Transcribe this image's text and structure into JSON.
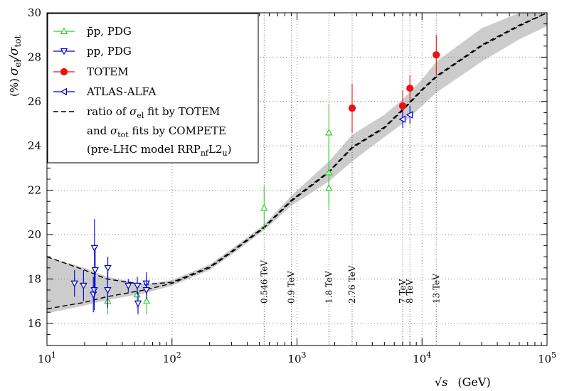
{
  "chart_data": {
    "type": "scatter",
    "xscale": "log",
    "xlim": [
      10,
      100000
    ],
    "ylim": [
      15,
      30
    ],
    "grid": true,
    "legend_position": "top-left",
    "ylabel": {
      "main": "σ",
      "sub1": "el",
      "slash": "/σ",
      "sub2": "tot",
      "unit": "(%)"
    },
    "xlabel": {
      "main": "√s",
      "unit": "(GeV)"
    },
    "xticks": [
      {
        "value": 10,
        "base": "10",
        "exp": "1"
      },
      {
        "value": 100,
        "base": "10",
        "exp": "2"
      },
      {
        "value": 1000,
        "base": "10",
        "exp": "3"
      },
      {
        "value": 10000,
        "base": "10",
        "exp": "4"
      },
      {
        "value": 100000,
        "base": "10",
        "exp": "5"
      }
    ],
    "yticks": [
      16,
      18,
      20,
      22,
      24,
      26,
      28,
      30
    ],
    "energy_markers": [
      {
        "x": 546,
        "label": "0.546 TeV"
      },
      {
        "x": 900,
        "label": "0.9 TeV"
      },
      {
        "x": 1800,
        "label": "1.8 TeV"
      },
      {
        "x": 2760,
        "label": "2.76 TeV"
      },
      {
        "x": 7000,
        "label": "7 TeV"
      },
      {
        "x": 8000,
        "label": "8 TeV"
      },
      {
        "x": 13000,
        "label": "13 TeV"
      }
    ],
    "series": [
      {
        "name": "p̄p, PDG",
        "color": "#33cc33",
        "marker": "triangle-up",
        "points": [
          {
            "x": 30.6,
            "y": 17.0,
            "err": 0.6
          },
          {
            "x": 52.6,
            "y": 17.3,
            "err": 0.6
          },
          {
            "x": 62.7,
            "y": 17.0,
            "err": 0.6
          },
          {
            "x": 546,
            "y": 21.2,
            "err": 1.0
          },
          {
            "x": 1800,
            "y": 22.8,
            "err": 1.5
          },
          {
            "x": 1800,
            "y": 24.6,
            "err": 1.3
          },
          {
            "x": 1800,
            "y": 22.1,
            "err": 1.0
          }
        ]
      },
      {
        "name": "pp, PDG",
        "color": "#0000cc",
        "marker": "triangle-down",
        "points": [
          {
            "x": 16.6,
            "y": 17.8,
            "err": 0.6
          },
          {
            "x": 19.6,
            "y": 17.7,
            "err": 0.7
          },
          {
            "x": 23.5,
            "y": 17.3,
            "err": 0.8
          },
          {
            "x": 23.9,
            "y": 17.5,
            "err": 0.9
          },
          {
            "x": 24.0,
            "y": 19.4,
            "err": 1.3
          },
          {
            "x": 24.3,
            "y": 18.4,
            "err": 1.0
          },
          {
            "x": 30.6,
            "y": 17.5,
            "err": 0.8
          },
          {
            "x": 30.7,
            "y": 18.5,
            "err": 0.5
          },
          {
            "x": 44.7,
            "y": 17.7,
            "err": 0.3
          },
          {
            "x": 52.8,
            "y": 17.7,
            "err": 0.4
          },
          {
            "x": 53.5,
            "y": 16.9,
            "err": 0.5
          },
          {
            "x": 62.3,
            "y": 17.8,
            "err": 0.5
          },
          {
            "x": 62.5,
            "y": 17.5,
            "err": 0.4
          }
        ]
      },
      {
        "name": "TOTEM",
        "color": "#ee1111",
        "marker": "circle",
        "points": [
          {
            "x": 2760,
            "y": 25.7,
            "err": 1.1
          },
          {
            "x": 7000,
            "y": 25.8,
            "err": 0.7
          },
          {
            "x": 8000,
            "y": 26.6,
            "err": 0.6
          },
          {
            "x": 13000,
            "y": 28.1,
            "err": 0.9
          }
        ]
      },
      {
        "name": "ATLAS-ALFA",
        "color": "#0000cc",
        "marker": "triangle-left",
        "points": [
          {
            "x": 7000,
            "y": 25.2,
            "err": 0.4
          },
          {
            "x": 8000,
            "y": 25.4,
            "err": 0.4
          }
        ]
      }
    ],
    "fit": {
      "legend_lines": [
        [
          "ratio of ",
          "σ",
          "el",
          " fit by TOTEM"
        ],
        [
          "and ",
          "σ",
          "tot",
          " fits by COMPETE"
        ],
        [
          "(pre-LHC model RRP",
          "nf",
          "",
          "L2",
          "u",
          ")"
        ]
      ],
      "band_color": "#cccccc",
      "lower": [
        [
          10,
          16.65
        ],
        [
          20,
          16.95
        ],
        [
          30,
          17.2
        ],
        [
          60,
          17.5
        ],
        [
          100,
          17.8
        ],
        [
          200,
          18.5
        ],
        [
          300,
          19.2
        ],
        [
          546,
          20.3
        ],
        [
          900,
          21.5
        ],
        [
          1800,
          22.8
        ],
        [
          2760,
          23.9
        ],
        [
          5000,
          24.8
        ],
        [
          7000,
          25.6
        ],
        [
          10000,
          26.5
        ],
        [
          13000,
          27.1
        ],
        [
          30000,
          28.5
        ],
        [
          60000,
          29.4
        ],
        [
          100000,
          30.0
        ]
      ],
      "upper": [
        [
          10,
          19.0
        ],
        [
          20,
          18.4
        ],
        [
          30,
          18.0
        ],
        [
          60,
          17.75
        ],
        [
          100,
          17.85
        ],
        [
          200,
          18.55
        ],
        [
          300,
          19.25
        ],
        [
          546,
          20.35
        ],
        [
          900,
          21.55
        ],
        [
          1800,
          22.85
        ],
        [
          2760,
          23.95
        ],
        [
          5000,
          24.85
        ],
        [
          7000,
          25.65
        ],
        [
          10000,
          26.55
        ],
        [
          13000,
          27.15
        ],
        [
          30000,
          28.55
        ],
        [
          60000,
          29.45
        ],
        [
          100000,
          30.0
        ]
      ],
      "band": [
        [
          10,
          16.45,
          19.0
        ],
        [
          20,
          16.8,
          18.5
        ],
        [
          30,
          17.05,
          18.1
        ],
        [
          60,
          17.35,
          17.75
        ],
        [
          100,
          17.7,
          17.95
        ],
        [
          200,
          18.4,
          18.65
        ],
        [
          300,
          19.1,
          19.35
        ],
        [
          546,
          20.2,
          20.45
        ],
        [
          900,
          21.3,
          21.75
        ],
        [
          1800,
          22.4,
          23.3
        ],
        [
          2760,
          23.3,
          24.5
        ],
        [
          5000,
          24.4,
          25.4
        ],
        [
          7000,
          25.0,
          26.1
        ],
        [
          10000,
          25.8,
          27.0
        ],
        [
          13000,
          26.4,
          27.8
        ],
        [
          30000,
          27.8,
          29.3
        ],
        [
          60000,
          28.8,
          30.0
        ],
        [
          100000,
          29.4,
          30.0
        ]
      ]
    }
  }
}
